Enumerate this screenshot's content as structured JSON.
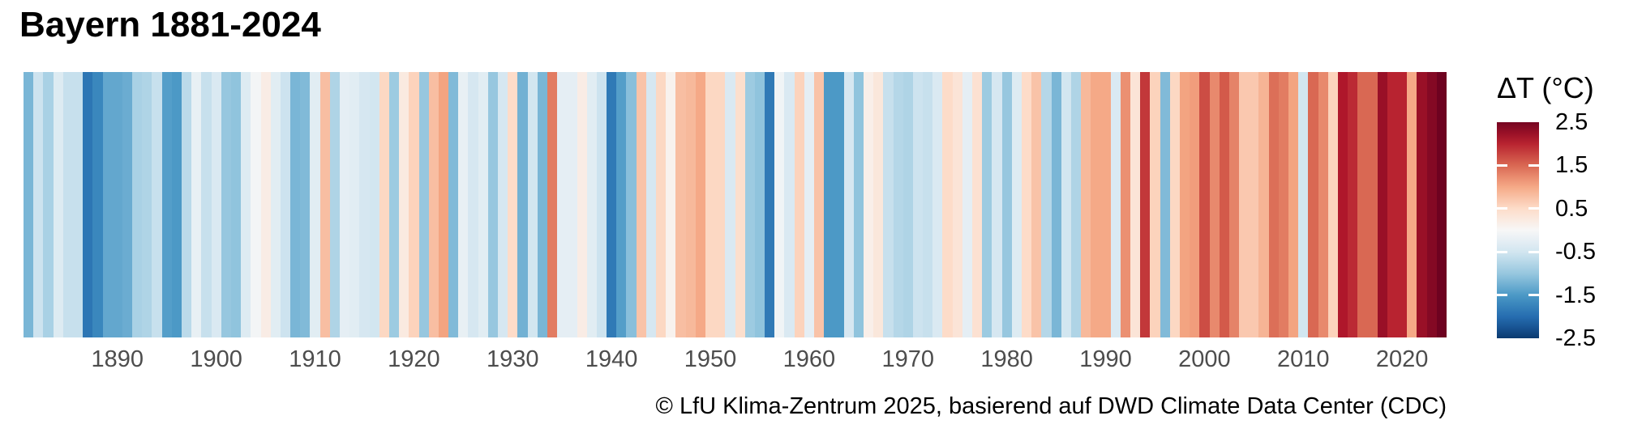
{
  "title": "Bayern 1881-2024",
  "caption": "© LfU Klima-Zentrum 2025, basierend auf DWD Climate Data Center (CDC)",
  "x_axis": {
    "tick_labels": [
      "1890",
      "1900",
      "1910",
      "1920",
      "1930",
      "1940",
      "1950",
      "1960",
      "1970",
      "1980",
      "1990",
      "2000",
      "2010",
      "2020"
    ]
  },
  "legend": {
    "title": "ΔT (°C)",
    "tick_labels": [
      "2.5",
      "1.5",
      "0.5",
      "-0.5",
      "-1.5",
      "-2.5"
    ]
  },
  "chart_data": {
    "type": "heatmap",
    "subtype": "warming-stripes",
    "title": "Bayern 1881-2024",
    "caption": "© LfU Klima-Zentrum 2025, basierend auf DWD Climate Data Center (CDC)",
    "xlabel": "",
    "ylabel": "ΔT (°C)",
    "x_range": [
      1881,
      2024
    ],
    "xticks": [
      1890,
      1900,
      1910,
      1920,
      1930,
      1940,
      1950,
      1960,
      1970,
      1980,
      1990,
      2000,
      2010,
      2020
    ],
    "colorbar": {
      "title": "ΔT (°C)",
      "range": [
        -2.5,
        2.5
      ],
      "ticks": [
        2.5,
        1.5,
        0.5,
        -0.5,
        -1.5,
        -2.5
      ],
      "interior_tickmarks": [
        1.5,
        0.5,
        -0.5,
        -1.5
      ]
    },
    "colormap": {
      "name": "RdBu",
      "domain": [
        -2.6,
        2.6
      ],
      "anchor_values": [
        -2.6,
        -2.08,
        -1.56,
        -1.04,
        -0.52,
        0,
        0.52,
        1.04,
        1.56,
        2.08,
        2.6
      ],
      "anchor_colors": [
        "#053061",
        "#2166ac",
        "#4393c3",
        "#92c5de",
        "#d1e5f0",
        "#f7f7f7",
        "#fddbc7",
        "#f4a582",
        "#d6604d",
        "#b2182b",
        "#67001f"
      ]
    },
    "years": [
      1881,
      1882,
      1883,
      1884,
      1885,
      1886,
      1887,
      1888,
      1889,
      1890,
      1891,
      1892,
      1893,
      1894,
      1895,
      1896,
      1897,
      1898,
      1899,
      1900,
      1901,
      1902,
      1903,
      1904,
      1905,
      1906,
      1907,
      1908,
      1909,
      1910,
      1911,
      1912,
      1913,
      1914,
      1915,
      1916,
      1917,
      1918,
      1919,
      1920,
      1921,
      1922,
      1923,
      1924,
      1925,
      1926,
      1927,
      1928,
      1929,
      1930,
      1931,
      1932,
      1933,
      1934,
      1935,
      1936,
      1937,
      1938,
      1939,
      1940,
      1941,
      1942,
      1943,
      1944,
      1945,
      1946,
      1947,
      1948,
      1949,
      1950,
      1951,
      1952,
      1953,
      1954,
      1955,
      1956,
      1957,
      1958,
      1959,
      1960,
      1961,
      1962,
      1963,
      1964,
      1965,
      1966,
      1967,
      1968,
      1969,
      1970,
      1971,
      1972,
      1973,
      1974,
      1975,
      1976,
      1977,
      1978,
      1979,
      1980,
      1981,
      1982,
      1983,
      1984,
      1985,
      1986,
      1987,
      1988,
      1989,
      1990,
      1991,
      1992,
      1993,
      1994,
      1995,
      1996,
      1997,
      1998,
      1999,
      2000,
      2001,
      2002,
      2003,
      2004,
      2005,
      2006,
      2007,
      2008,
      2009,
      2010,
      2011,
      2012,
      2013,
      2014,
      2015,
      2016,
      2017,
      2018,
      2019,
      2020,
      2021,
      2022,
      2023,
      2024
    ],
    "anomalies": [
      -1.2,
      -0.55,
      -0.85,
      -0.35,
      -0.6,
      -0.6,
      -1.9,
      -1.7,
      -1.35,
      -1.35,
      -1.3,
      -0.85,
      -0.8,
      -0.6,
      -1.45,
      -1.5,
      -0.7,
      -0.2,
      -0.6,
      -0.4,
      -1.0,
      -1.05,
      -0.35,
      -0.05,
      0.2,
      -0.3,
      -0.55,
      -1.2,
      -1.15,
      -0.3,
      0.8,
      -0.8,
      -0.25,
      -0.3,
      -0.45,
      -0.5,
      0.55,
      -0.95,
      0.25,
      0.6,
      -1.0,
      0.8,
      1.05,
      -1.15,
      -0.2,
      -0.45,
      -0.3,
      -1.0,
      -0.45,
      0.5,
      -1.25,
      -0.5,
      -1.2,
      1.35,
      -0.25,
      -0.25,
      0.2,
      -0.3,
      -0.55,
      -1.85,
      -1.45,
      -1.1,
      0.75,
      -0.45,
      0.55,
      0.1,
      0.8,
      0.85,
      1.0,
      0.55,
      0.55,
      -0.4,
      0.45,
      -0.95,
      -1.05,
      -1.85,
      -0.1,
      -0.4,
      0.6,
      -0.25,
      0.75,
      -1.5,
      -1.5,
      -0.45,
      -1.05,
      0.15,
      0.3,
      -0.6,
      -0.75,
      -0.8,
      -0.55,
      -0.6,
      -0.4,
      0.5,
      0.35,
      -0.25,
      0.4,
      -0.95,
      -0.45,
      -1.0,
      -0.35,
      0.5,
      0.75,
      -0.75,
      -1.2,
      -0.5,
      -0.8,
      0.85,
      1.0,
      1.0,
      -0.4,
      1.2,
      0.35,
      1.85,
      0.6,
      -1.15,
      0.55,
      1.05,
      1.1,
      1.7,
      1.25,
      1.6,
      1.3,
      0.7,
      0.7,
      0.9,
      1.45,
      1.35,
      1.05,
      -0.5,
      1.5,
      1.25,
      0.6,
      2.1,
      1.95,
      1.5,
      1.5,
      2.25,
      2.0,
      2.0,
      1.0,
      2.25,
      2.4,
      2.55
    ]
  }
}
